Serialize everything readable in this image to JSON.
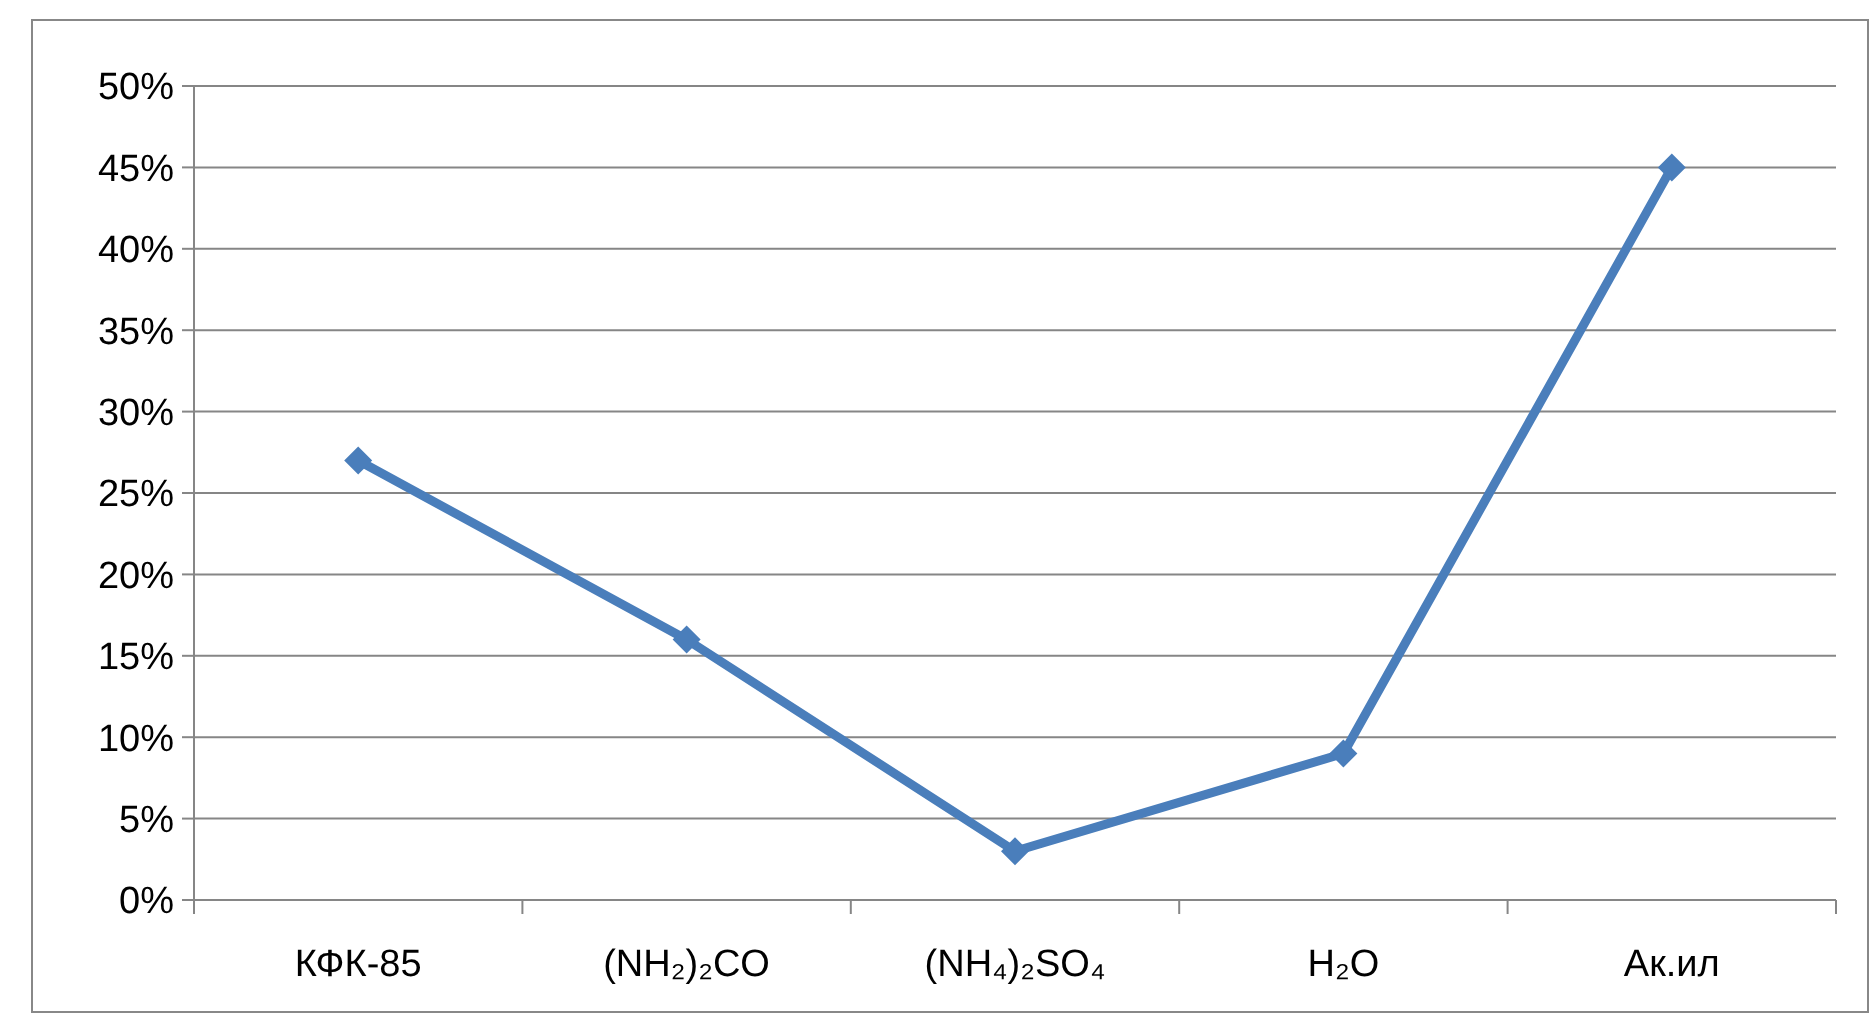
{
  "chart_data": {
    "type": "line",
    "categories": [
      "КФК-85",
      "(NH₂)₂CO",
      "(NH₄)₂SO₄",
      "H₂O",
      "Ак.ил"
    ],
    "series": [
      {
        "color": "#4a7ebb",
        "values": [
          27,
          16,
          3,
          9,
          45
        ]
      }
    ],
    "ylim": [
      0,
      50
    ],
    "yticks": [
      {
        "value": 0,
        "label": "0%"
      },
      {
        "value": 5,
        "label": "5%"
      },
      {
        "value": 10,
        "label": "10%"
      },
      {
        "value": 15,
        "label": "15%"
      },
      {
        "value": 20,
        "label": "20%"
      },
      {
        "value": 25,
        "label": "25%"
      },
      {
        "value": 30,
        "label": "30%"
      },
      {
        "value": 35,
        "label": "35%"
      },
      {
        "value": 40,
        "label": "40%"
      },
      {
        "value": 45,
        "label": "45%"
      },
      {
        "value": 50,
        "label": "50%"
      }
    ],
    "grid": "y",
    "marker": "diamond",
    "line_style": "solid"
  }
}
